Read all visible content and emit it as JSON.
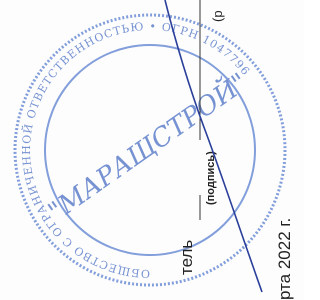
{
  "form": {
    "top_hint": "(р",
    "signature_hint": "(подпись)",
    "position_tail": "тель",
    "date_tail": "рта 2022 г."
  },
  "stamp": {
    "name": "\"МАРАЩСТРОЙ\"",
    "ring_text": "ОБЩЕСТВО С ОГРАНИЧЕННОЙ ОТВЕТСТВЕННОСТЬЮ • ОГРН 1047796"
  }
}
